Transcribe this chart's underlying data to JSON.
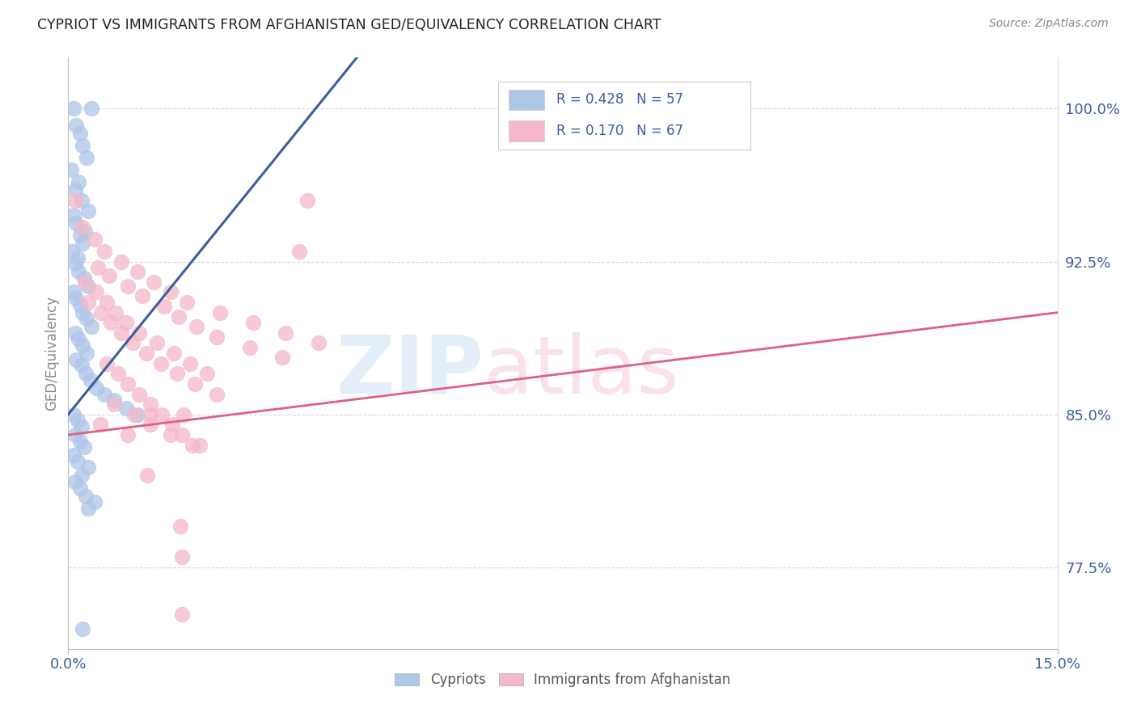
{
  "title": "CYPRIOT VS IMMIGRANTS FROM AFGHANISTAN GED/EQUIVALENCY CORRELATION CHART",
  "source": "Source: ZipAtlas.com",
  "ylabel": "GED/Equivalency",
  "yticks": [
    77.5,
    85.0,
    92.5,
    100.0
  ],
  "ytick_labels": [
    "77.5%",
    "85.0%",
    "92.5%",
    "100.0%"
  ],
  "xmin": 0.0,
  "xmax": 15.0,
  "ymin": 73.5,
  "ymax": 102.5,
  "legend_r1": "0.428",
  "legend_n1": "57",
  "legend_r2": "0.170",
  "legend_n2": "67",
  "color_blue": "#aec6e8",
  "color_pink": "#f4b8c8",
  "line_blue": "#3a5fa0",
  "line_pink": "#e06080",
  "blue_x": [
    0.08,
    0.35,
    0.12,
    0.18,
    0.22,
    0.28,
    0.05,
    0.15,
    0.1,
    0.2,
    0.3,
    0.08,
    0.12,
    0.25,
    0.18,
    0.22,
    0.06,
    0.14,
    0.1,
    0.16,
    0.24,
    0.3,
    0.08,
    0.12,
    0.18,
    0.22,
    0.28,
    0.35,
    0.1,
    0.16,
    0.22,
    0.28,
    0.12,
    0.2,
    0.26,
    0.34,
    0.42,
    0.55,
    0.7,
    0.88,
    1.05,
    0.08,
    0.14,
    0.2,
    0.1,
    0.18,
    0.24,
    0.08,
    0.14,
    0.3,
    0.2,
    0.1,
    0.18,
    0.26,
    0.4,
    0.3,
    0.22
  ],
  "blue_y": [
    100.0,
    100.0,
    99.2,
    98.8,
    98.2,
    97.6,
    97.0,
    96.4,
    96.0,
    95.5,
    95.0,
    94.8,
    94.4,
    94.0,
    93.8,
    93.4,
    93.0,
    92.7,
    92.4,
    92.0,
    91.7,
    91.3,
    91.0,
    90.7,
    90.4,
    90.0,
    89.7,
    89.3,
    89.0,
    88.7,
    88.4,
    88.0,
    87.7,
    87.4,
    87.0,
    86.7,
    86.3,
    86.0,
    85.7,
    85.3,
    85.0,
    85.0,
    84.7,
    84.4,
    84.0,
    83.7,
    83.4,
    83.0,
    82.7,
    82.4,
    82.0,
    81.7,
    81.4,
    81.0,
    80.7,
    80.4,
    74.5
  ],
  "pink_x": [
    0.1,
    0.22,
    0.4,
    0.55,
    0.8,
    1.05,
    1.3,
    1.55,
    1.8,
    2.3,
    2.8,
    3.3,
    3.8,
    0.45,
    0.62,
    0.9,
    1.12,
    1.45,
    1.68,
    1.95,
    2.25,
    2.75,
    3.25,
    0.25,
    0.42,
    0.58,
    0.72,
    0.88,
    1.08,
    1.35,
    1.6,
    1.85,
    2.1,
    0.3,
    0.5,
    0.65,
    0.8,
    0.98,
    1.18,
    1.4,
    1.65,
    1.92,
    2.25,
    0.58,
    0.75,
    0.9,
    1.08,
    1.25,
    1.42,
    1.58,
    1.72,
    1.88,
    0.7,
    1.0,
    1.25,
    1.55,
    2.0,
    0.48,
    0.9,
    1.25,
    1.75,
    3.62,
    3.5,
    1.7,
    1.72,
    1.2,
    1.72
  ],
  "pink_y": [
    95.5,
    94.2,
    93.6,
    93.0,
    92.5,
    92.0,
    91.5,
    91.0,
    90.5,
    90.0,
    89.5,
    89.0,
    88.5,
    92.2,
    91.8,
    91.3,
    90.8,
    90.3,
    89.8,
    89.3,
    88.8,
    88.3,
    87.8,
    91.5,
    91.0,
    90.5,
    90.0,
    89.5,
    89.0,
    88.5,
    88.0,
    87.5,
    87.0,
    90.5,
    90.0,
    89.5,
    89.0,
    88.5,
    88.0,
    87.5,
    87.0,
    86.5,
    86.0,
    87.5,
    87.0,
    86.5,
    86.0,
    85.5,
    85.0,
    84.5,
    84.0,
    83.5,
    85.5,
    85.0,
    84.5,
    84.0,
    83.5,
    84.5,
    84.0,
    85.0,
    85.0,
    95.5,
    93.0,
    79.5,
    75.2,
    82.0,
    78.0
  ]
}
